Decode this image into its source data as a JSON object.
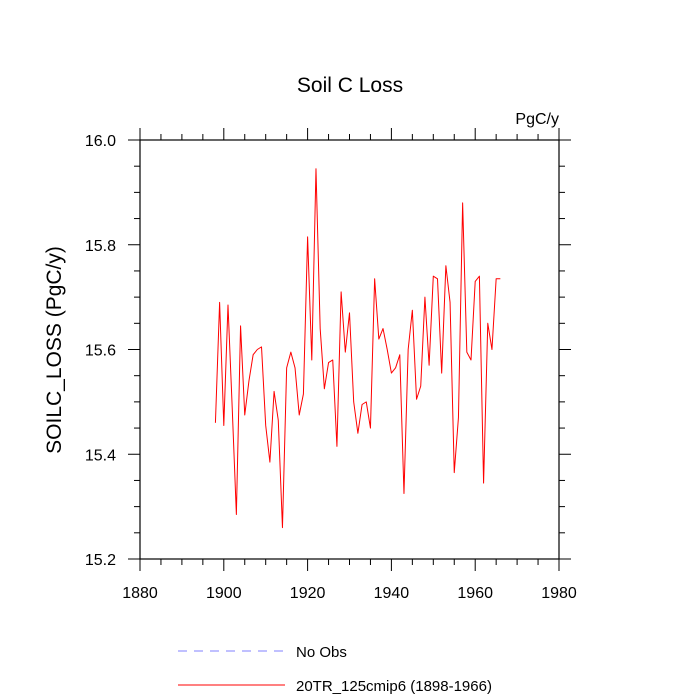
{
  "chart_data": {
    "type": "line",
    "title": "Soil C Loss",
    "units": "PgC/y",
    "xlabel": "",
    "ylabel": "SOILC_LOSS  (PgC/y)",
    "xlim": [
      1880,
      1980
    ],
    "ylim": [
      15.2,
      16.0
    ],
    "x_ticks": [
      1880,
      1900,
      1920,
      1940,
      1960,
      1980
    ],
    "x_tick_labels": [
      "1880",
      "1900",
      "1920",
      "1940",
      "1960",
      "1980"
    ],
    "y_ticks": [
      15.2,
      15.4,
      15.6,
      15.8,
      16.0
    ],
    "y_tick_labels": [
      "15.2",
      "15.4",
      "15.6",
      "15.8",
      "16.0"
    ],
    "grid": false,
    "series": [
      {
        "name": "20TR_125cmip6 (1898-1966)",
        "color": "#ff0000",
        "dash": "solid",
        "x": [
          1898,
          1899,
          1900,
          1901,
          1902,
          1903,
          1904,
          1905,
          1906,
          1907,
          1908,
          1909,
          1910,
          1911,
          1912,
          1913,
          1914,
          1915,
          1916,
          1917,
          1918,
          1919,
          1920,
          1921,
          1922,
          1923,
          1924,
          1925,
          1926,
          1927,
          1928,
          1929,
          1930,
          1931,
          1932,
          1933,
          1934,
          1935,
          1936,
          1937,
          1938,
          1939,
          1940,
          1941,
          1942,
          1943,
          1944,
          1945,
          1946,
          1947,
          1948,
          1949,
          1950,
          1951,
          1952,
          1953,
          1954,
          1955,
          1956,
          1957,
          1958,
          1959,
          1960,
          1961,
          1962,
          1963,
          1964,
          1965,
          1966
        ],
        "values": [
          15.46,
          15.69,
          15.455,
          15.685,
          15.49,
          15.285,
          15.645,
          15.475,
          15.54,
          15.59,
          15.6,
          15.605,
          15.455,
          15.385,
          15.52,
          15.465,
          15.26,
          15.565,
          15.595,
          15.565,
          15.475,
          15.515,
          15.815,
          15.58,
          15.945,
          15.64,
          15.525,
          15.575,
          15.58,
          15.415,
          15.71,
          15.595,
          15.67,
          15.5,
          15.44,
          15.495,
          15.5,
          15.45,
          15.735,
          15.62,
          15.64,
          15.6,
          15.555,
          15.565,
          15.59,
          15.325,
          15.6,
          15.675,
          15.505,
          15.53,
          15.7,
          15.57,
          15.74,
          15.735,
          15.555,
          15.76,
          15.69,
          15.365,
          15.47,
          15.88,
          15.595,
          15.58,
          15.73,
          15.74,
          15.345,
          15.65,
          15.6,
          15.735,
          15.735
        ]
      }
    ],
    "legend": {
      "placement": "bottom",
      "entries": [
        {
          "label": "No Obs",
          "color": "#8080ff",
          "dash": "dashed"
        },
        {
          "label": "20TR_125cmip6 (1898-1966)",
          "color": "#ff0000",
          "dash": "solid"
        }
      ]
    }
  }
}
